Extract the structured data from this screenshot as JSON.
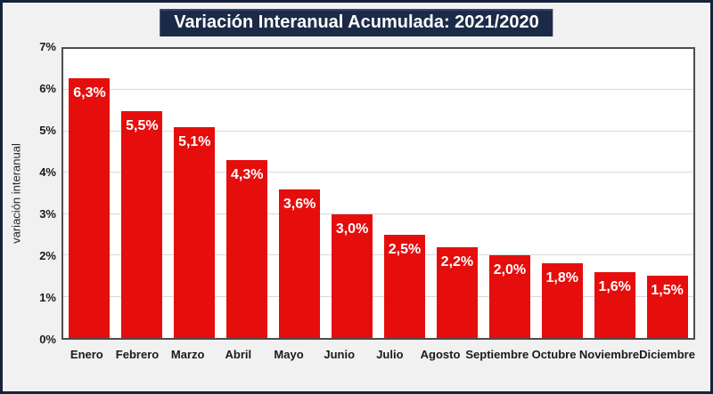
{
  "page": {
    "background_color": "#f1f1f1",
    "border_color": "#15223a",
    "plot_background": "#ffffff",
    "plot_border_color": "#4d4d4d",
    "gridline_color": "#d9d9d9"
  },
  "title": {
    "text": "Variación Interanual Acumulada: 2021/2020",
    "background_color": "#1b2b47",
    "text_color": "#ffffff"
  },
  "chart_data": {
    "type": "bar",
    "title": "Variación Interanual Acumulada: 2021/2020",
    "categories": [
      "Enero",
      "Febrero",
      "Marzo",
      "Abril",
      "Mayo",
      "Junio",
      "Julio",
      "Agosto",
      "Septiembre",
      "Octubre",
      "Noviembre",
      "Diciembre"
    ],
    "values": [
      6.3,
      5.5,
      5.1,
      4.3,
      3.6,
      3.0,
      2.5,
      2.2,
      2.0,
      1.8,
      1.6,
      1.5
    ],
    "value_labels": [
      "6,3%",
      "5,5%",
      "5,1%",
      "4,3%",
      "3,6%",
      "3,0%",
      "2,5%",
      "2,2%",
      "2,0%",
      "1,8%",
      "1,6%",
      "1,5%"
    ],
    "xlabel": "",
    "ylabel": "variación interanual",
    "ylim": [
      0,
      7
    ],
    "yticks": [
      0,
      1,
      2,
      3,
      4,
      5,
      6,
      7
    ],
    "ytick_labels": [
      "0%",
      "1%",
      "2%",
      "3%",
      "4%",
      "5%",
      "6%",
      "7%"
    ],
    "grid": true,
    "legend": false,
    "bar_color": "#e60d0d",
    "bar_label_color": "#ffffff"
  }
}
